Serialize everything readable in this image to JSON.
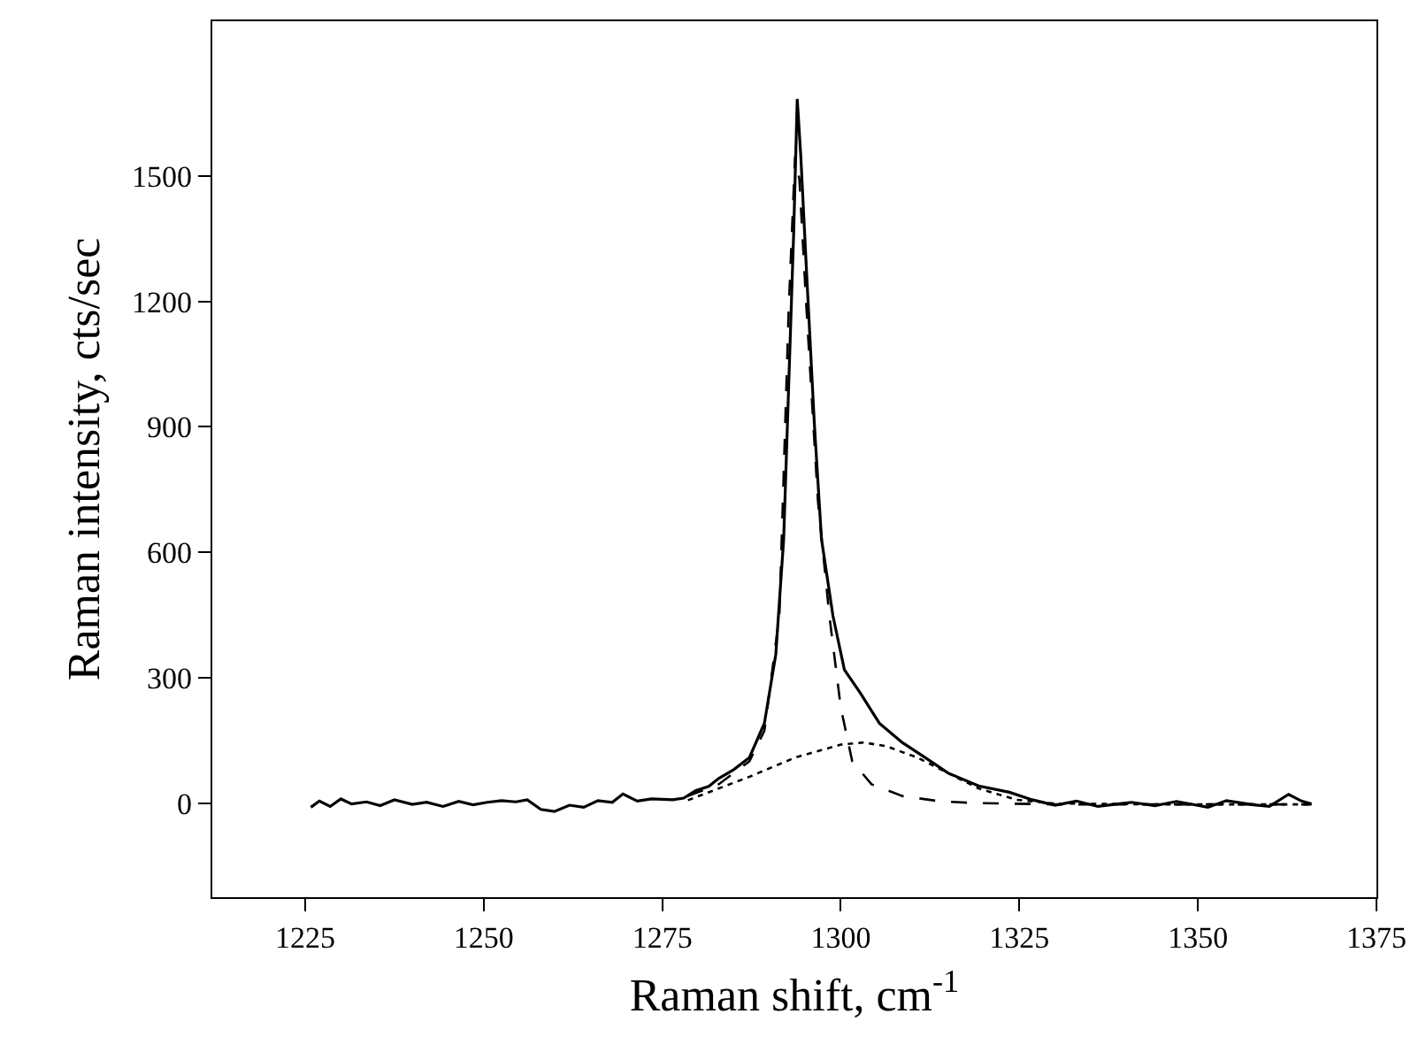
{
  "chart_data": {
    "type": "line",
    "xlabel": "Raman shift, cm$^{-1}$",
    "ylabel": "Raman intensity, cts/sec",
    "xlim": [
      1212,
      1375
    ],
    "xticks": [
      1225,
      1250,
      1275,
      1300,
      1325,
      1350,
      1375
    ],
    "ylim": [
      -225,
      1870
    ],
    "yticks": [
      0,
      300,
      600,
      900,
      1200,
      1500
    ],
    "marker": "none",
    "series": [
      {
        "color": "#000000",
        "line_style": "solid",
        "x": [
          1225.8,
          1227,
          1228.5,
          1230,
          1231.5,
          1233.6,
          1235.5,
          1237.5,
          1240,
          1242,
          1244.3,
          1246.5,
          1248.5,
          1250.5,
          1252.5,
          1254.5,
          1256.1,
          1258,
          1259.9,
          1262,
          1264,
          1266,
          1268,
          1269.5,
          1271.5,
          1273.5,
          1276.5,
          1278,
          1279.7,
          1281.5,
          1282.9,
          1285,
          1287.2,
          1289.3,
          1290.9,
          1292.0,
          1292.7,
          1293.4,
          1293.9,
          1294.4,
          1295.2,
          1296.3,
          1297.3,
          1298.9,
          1300.5,
          1302.7,
          1305.4,
          1308.6,
          1311.8,
          1315.0,
          1319.3,
          1323.6,
          1326.8,
          1330.0,
          1333,
          1336,
          1340.7,
          1344,
          1347,
          1351.4,
          1354,
          1357.8,
          1360,
          1362.7,
          1364.5,
          1365.9
        ],
        "values": [
          -10,
          5,
          -8,
          10,
          -2,
          3,
          -6,
          8,
          -3,
          2,
          -8,
          4,
          -4,
          2,
          6,
          3,
          8,
          -15,
          -20,
          -5,
          -10,
          6,
          2,
          22,
          5,
          10,
          8,
          12,
          30,
          40,
          59,
          80,
          109,
          191,
          356,
          631,
          997,
          1364,
          1684,
          1547,
          1272,
          906,
          631,
          448,
          319,
          264,
          191,
          145,
          109,
          72,
          41,
          26,
          8,
          -5,
          5,
          -8,
          2,
          -6,
          4,
          -10,
          6,
          -4,
          -8,
          21,
          5,
          -2
        ]
      },
      {
        "color": "#000000",
        "line_style": "dashed",
        "x": [
          1278.6,
          1282.9,
          1287.2,
          1289.3,
          1291.4,
          1292.7,
          1293.6,
          1294.2,
          1295.2,
          1296.8,
          1298.4,
          1300.0,
          1301.6,
          1304.3,
          1308.6,
          1314.0,
          1319.3,
          1330.0,
          1345,
          1365.9
        ],
        "values": [
          17,
          45,
          100,
          173,
          448,
          1180,
          1547,
          1492,
          1180,
          722,
          448,
          228,
          100,
          45,
          17,
          4,
          0,
          -3,
          -3,
          -3
        ]
      },
      {
        "color": "#000000",
        "line_style": "dotted",
        "x": [
          1278.6,
          1287.2,
          1293.6,
          1300.0,
          1303.2,
          1306.4,
          1310.7,
          1315.0,
          1319.3,
          1324.6,
          1330.0,
          1345,
          1365.9
        ],
        "values": [
          7,
          63,
          109,
          140,
          145,
          136,
          109,
          72,
          35,
          8,
          -1,
          -3,
          -3
        ]
      }
    ]
  }
}
